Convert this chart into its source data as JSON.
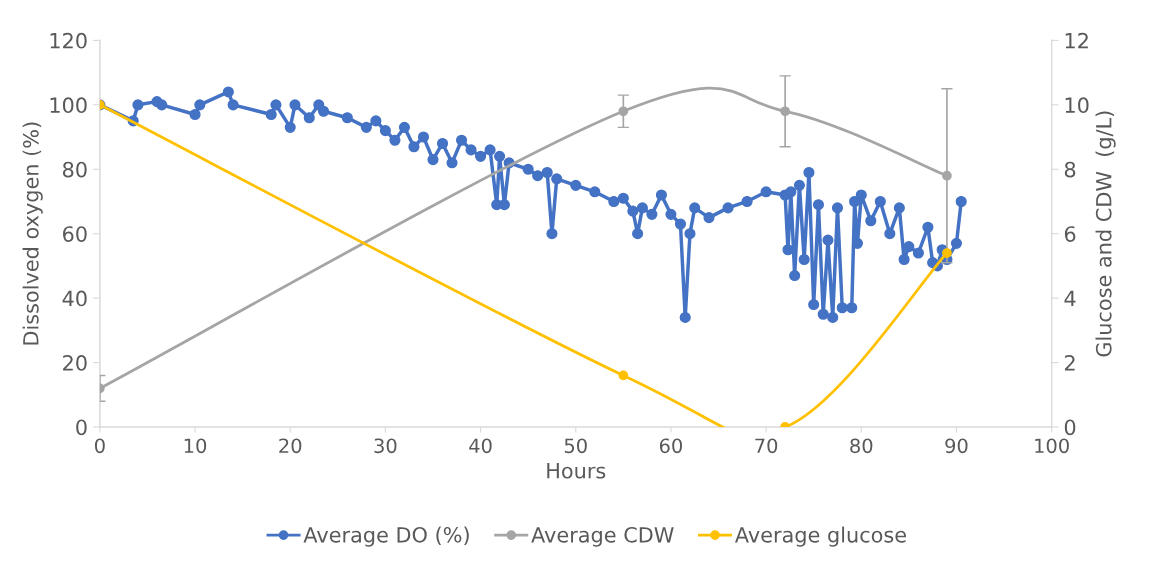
{
  "chart_data": {
    "type": "line",
    "xlabel": "Hours",
    "ylabel": "Dissolved oxygen (%)",
    "y2label": "Glucose and CDW  (g/L)",
    "xlim": [
      0,
      100
    ],
    "xticks": [
      0,
      10,
      20,
      30,
      40,
      50,
      60,
      70,
      80,
      90,
      100
    ],
    "ylim": [
      0,
      120
    ],
    "yticks": [
      0,
      20,
      40,
      60,
      80,
      100,
      120
    ],
    "y2lim": [
      0,
      12
    ],
    "y2ticks": [
      0,
      2,
      4,
      6,
      8,
      10,
      12
    ],
    "legend": "bottom",
    "marker": "circle",
    "series": [
      {
        "name": "Average DO (%)",
        "color": "#4472c4",
        "x": [
          0,
          3.5,
          4,
          6,
          6.5,
          10,
          10.5,
          13.5,
          14,
          18,
          18.5,
          20,
          20.5,
          22,
          23,
          23.5,
          26,
          28,
          29,
          30,
          31,
          32,
          33,
          34,
          35,
          36,
          37,
          38,
          39,
          40,
          41,
          41.7,
          42,
          42.5,
          43,
          45,
          46,
          47,
          47.5,
          48,
          50,
          52,
          54,
          55,
          56,
          56.5,
          57,
          58,
          59,
          60,
          61,
          61.5,
          62,
          62.5,
          64,
          66,
          68,
          70,
          72,
          72.3,
          72.6,
          73,
          73.5,
          74,
          74.5,
          75,
          75.5,
          76,
          76.5,
          77,
          77.5,
          78,
          79,
          79.3,
          79.6,
          80,
          81,
          82,
          83,
          84,
          84.5,
          85,
          86,
          87,
          87.5,
          88,
          88.5,
          89,
          90,
          90.5
        ],
        "values": [
          100,
          95,
          100,
          101,
          100,
          97,
          100,
          104,
          100,
          97,
          100,
          93,
          100,
          96,
          100,
          98,
          96,
          93,
          95,
          92,
          89,
          93,
          87,
          90,
          83,
          88,
          82,
          89,
          86,
          84,
          86,
          69,
          84,
          69,
          82,
          80,
          78,
          79,
          60,
          77,
          75,
          73,
          70,
          71,
          67,
          60,
          68,
          66,
          72,
          66,
          63,
          34,
          60,
          68,
          65,
          68,
          70,
          73,
          72,
          55,
          73,
          47,
          75,
          52,
          79,
          38,
          69,
          35,
          58,
          34,
          68,
          37,
          37,
          70,
          57,
          72,
          64,
          70,
          60,
          68,
          52,
          56,
          54,
          62,
          51,
          50,
          55,
          52,
          57,
          70
        ]
      },
      {
        "name": "Average CDW",
        "color": "#a5a5a5",
        "axis": "y2",
        "x": [
          0,
          55,
          72,
          89
        ],
        "values": [
          1.2,
          9.8,
          9.8,
          7.8
        ],
        "errors": [
          0.4,
          0.5,
          1.1,
          2.7
        ]
      },
      {
        "name": "Average glucose",
        "color": "#ffc000",
        "axis": "y2",
        "x": [
          0,
          55,
          72,
          89
        ],
        "values": [
          10,
          1.6,
          0,
          5.4
        ]
      }
    ]
  }
}
